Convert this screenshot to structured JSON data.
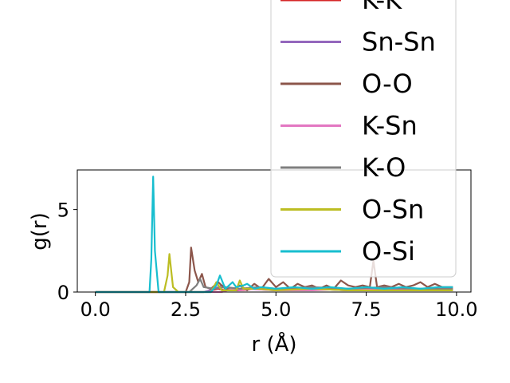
{
  "chart_data": {
    "type": "line",
    "xlabel": "r (Å)",
    "ylabel": "g(r)",
    "xlim": [
      -0.5,
      10.4
    ],
    "ylim": [
      0,
      7.4
    ],
    "xticks": [
      0.0,
      2.5,
      5.0,
      7.5,
      10.0
    ],
    "xtick_labels": [
      "0.0",
      "2.5",
      "5.0",
      "7.5",
      "10.0"
    ],
    "yticks": [
      0,
      5
    ],
    "ytick_labels": [
      "0",
      "5"
    ],
    "grid": false,
    "legend_placement": "upper-right, extends above axes",
    "series": [
      {
        "name": "K-K",
        "color": "#d62728",
        "x": [
          0,
          1.5,
          3.0,
          3.2,
          3.4,
          3.6,
          4.0,
          4.4,
          5.0,
          6.0,
          7.0,
          8.0,
          9.0,
          9.9
        ],
        "y": [
          0,
          0,
          0,
          0.1,
          0.2,
          0.1,
          0.1,
          0.2,
          0.1,
          0.2,
          0.1,
          0.2,
          0.1,
          0.2
        ]
      },
      {
        "name": "Sn-Sn",
        "color": "#9467bd",
        "x": [
          0,
          3.0,
          3.3,
          3.5,
          3.8,
          4.2,
          5.0,
          6.0,
          7.0,
          8.0,
          9.0,
          9.9
        ],
        "y": [
          0,
          0,
          0.2,
          0.4,
          0.1,
          0.2,
          0.1,
          0.2,
          0.1,
          0.2,
          0.1,
          0.1
        ]
      },
      {
        "name": "O-O",
        "color": "#8c564b",
        "x": [
          0,
          2.5,
          2.6,
          2.65,
          2.75,
          2.85,
          2.95,
          3.05,
          3.2,
          3.4,
          3.6,
          3.8,
          4.0,
          4.2,
          4.4,
          4.6,
          4.8,
          5.0,
          5.2,
          5.4,
          5.6,
          5.8,
          6.0,
          6.2,
          6.4,
          6.6,
          6.8,
          7.0,
          7.2,
          7.4,
          7.6,
          7.7,
          7.8,
          8.0,
          8.2,
          8.4,
          8.6,
          8.8,
          9.0,
          9.2,
          9.4,
          9.6,
          9.9
        ],
        "y": [
          0,
          0,
          0.6,
          2.7,
          1.3,
          0.6,
          1.1,
          0.3,
          0.2,
          0.6,
          0.2,
          0.1,
          0.4,
          0.1,
          0.5,
          0.2,
          0.8,
          0.3,
          0.6,
          0.2,
          0.5,
          0.3,
          0.4,
          0.2,
          0.4,
          0.2,
          0.7,
          0.4,
          0.3,
          0.4,
          0.3,
          1.9,
          0.3,
          0.4,
          0.3,
          0.5,
          0.3,
          0.4,
          0.6,
          0.3,
          0.5,
          0.3,
          0.3
        ]
      },
      {
        "name": "K-Sn",
        "color": "#e377c2",
        "x": [
          0,
          3.5,
          3.8,
          4.0,
          4.2,
          5.0,
          6.0,
          7.0,
          8.0,
          9.0,
          9.9
        ],
        "y": [
          0,
          0,
          0.2,
          0.1,
          0.2,
          0.1,
          0.1,
          0.2,
          0.1,
          0.1,
          0.1
        ]
      },
      {
        "name": "K-O",
        "color": "#7f7f7f",
        "x": [
          0,
          2.6,
          2.8,
          2.9,
          3.0,
          3.3,
          3.6,
          4.0,
          4.5,
          5.0,
          6.0,
          7.0,
          8.0,
          9.0,
          9.9
        ],
        "y": [
          0,
          0,
          0.4,
          0.8,
          0.3,
          0.2,
          0.3,
          0.2,
          0.3,
          0.2,
          0.3,
          0.2,
          0.3,
          0.2,
          0.2
        ]
      },
      {
        "name": "O-Sn",
        "color": "#bcbd22",
        "x": [
          0,
          1.9,
          2.0,
          2.05,
          2.15,
          2.3,
          3.2,
          3.35,
          3.5,
          3.9,
          4.0,
          4.1,
          4.5,
          5.0,
          6.0,
          7.0,
          8.0,
          9.0,
          9.9
        ],
        "y": [
          0,
          0,
          1.0,
          2.3,
          0.3,
          0,
          0,
          0.6,
          0.1,
          0.1,
          0.7,
          0.2,
          0.2,
          0.1,
          0.2,
          0.1,
          0.1,
          0.1,
          0.1
        ]
      },
      {
        "name": "O-Si",
        "color": "#17becf",
        "x": [
          0,
          1.5,
          1.55,
          1.6,
          1.65,
          1.75,
          2.5,
          3.2,
          3.35,
          3.45,
          3.6,
          3.8,
          3.9,
          4.1,
          4.2,
          4.4,
          4.6,
          5.0,
          5.5,
          6.0,
          6.5,
          7.0,
          7.5,
          8.0,
          8.5,
          9.0,
          9.5,
          9.9
        ],
        "y": [
          0,
          0,
          2.0,
          7.0,
          2.5,
          0,
          0,
          0,
          0.4,
          1.0,
          0.2,
          0.6,
          0.3,
          0.4,
          0.5,
          0.2,
          0.3,
          0.2,
          0.3,
          0.2,
          0.3,
          0.2,
          0.3,
          0.2,
          0.3,
          0.2,
          0.3,
          0.3
        ]
      }
    ]
  }
}
